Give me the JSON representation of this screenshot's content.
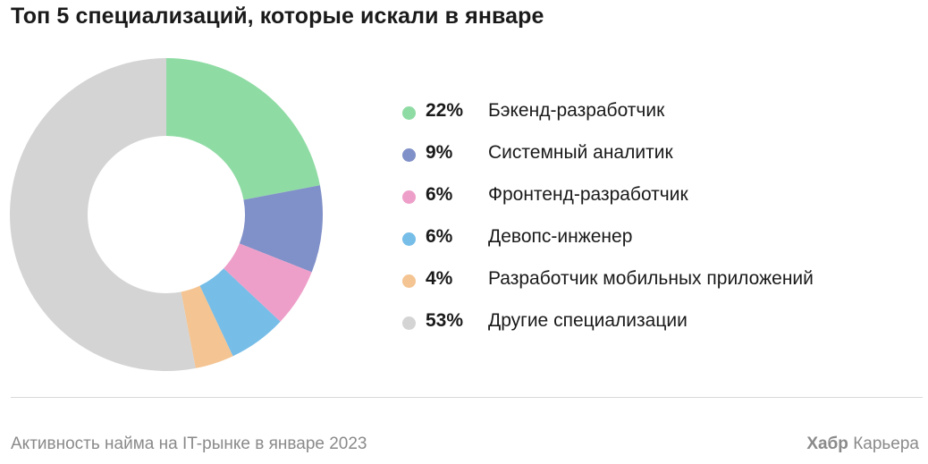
{
  "chart_data": {
    "type": "pie",
    "title": "Топ 5 специализаций, которые искали в январе",
    "slices": [
      {
        "label": "Бэкенд-разработчик",
        "value": 22,
        "value_label": "22%",
        "color": "#8fdba4"
      },
      {
        "label": "Системный аналитик",
        "value": 9,
        "value_label": "9%",
        "color": "#8090c8"
      },
      {
        "label": "Фронтенд-разработчик",
        "value": 6,
        "value_label": "6%",
        "color": "#ee9fc9"
      },
      {
        "label": "Девопс-инженер",
        "value": 6,
        "value_label": "6%",
        "color": "#76bde8"
      },
      {
        "label": "Разработчик мобильных приложений",
        "value": 4,
        "value_label": "4%",
        "color": "#f4c492"
      },
      {
        "label": "Другие специализации",
        "value": 53,
        "value_label": "53%",
        "color": "#d4d4d4"
      }
    ],
    "legend_position": "right",
    "donut": true
  },
  "footer": {
    "source": "Активность найма на IT-рынке в январе 2023",
    "brand_bold": "Хабр",
    "brand_rest": "Карьера"
  }
}
